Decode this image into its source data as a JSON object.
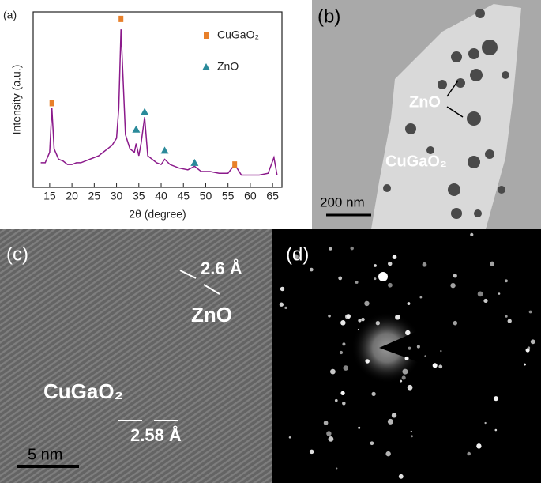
{
  "chart_data": {
    "type": "line",
    "xlabel": "2θ (degree)",
    "ylabel": "Intensity (a.u.)",
    "color": "#8b1a8b",
    "x": [
      13,
      14,
      15,
      15.5,
      16,
      17,
      18,
      19,
      20,
      21,
      22,
      23,
      24,
      25,
      26,
      27,
      28,
      29,
      30,
      30.5,
      31,
      31.5,
      32,
      33,
      34,
      34.4,
      35,
      35.5,
      36.3,
      37,
      38,
      39,
      40,
      40.8,
      42,
      44,
      46,
      47.5,
      49,
      51,
      53,
      55,
      56.5,
      58,
      60,
      62,
      64,
      65.3,
      66
    ],
    "values": [
      14,
      14,
      20,
      45,
      22,
      16,
      15,
      13,
      13,
      14,
      14,
      15,
      16,
      17,
      18,
      20,
      22,
      24,
      28,
      45,
      90,
      60,
      30,
      22,
      20,
      25,
      18,
      25,
      40,
      18,
      16,
      14,
      13,
      16,
      13,
      11,
      10,
      12,
      9,
      9,
      8,
      8,
      13,
      7,
      7,
      7,
      8,
      17,
      7
    ],
    "series": [
      {
        "name": "CuGaO₂",
        "color": "#e8802a",
        "marker": "square",
        "x": [
          15.5,
          31,
          56.5
        ],
        "values": [
          48,
          96,
          13
        ]
      },
      {
        "name": "ZnO",
        "color": "#2a8a9a",
        "marker": "triangle",
        "x": [
          34.4,
          36.3,
          40.8,
          47.5
        ],
        "values": [
          33,
          43,
          21,
          14
        ]
      }
    ],
    "xlim": [
      11.3,
      67.1
    ],
    "ylim": [
      0,
      100
    ],
    "xticks": [
      15,
      20,
      25,
      30,
      35,
      40,
      45,
      50,
      55,
      60,
      65
    ]
  },
  "panels": {
    "a": {
      "label": "(a)"
    },
    "b": {
      "label": "(b)",
      "annotations": [
        "ZnO",
        "CuGaO₂"
      ],
      "scale_bar": "200 nm"
    },
    "c": {
      "label": "(c)",
      "annotations": [
        "2.6 Å",
        "ZnO",
        "CuGaO₂",
        "2.58 Å"
      ],
      "scale_bar": "5 nm"
    },
    "d": {
      "label": "(d)"
    }
  }
}
